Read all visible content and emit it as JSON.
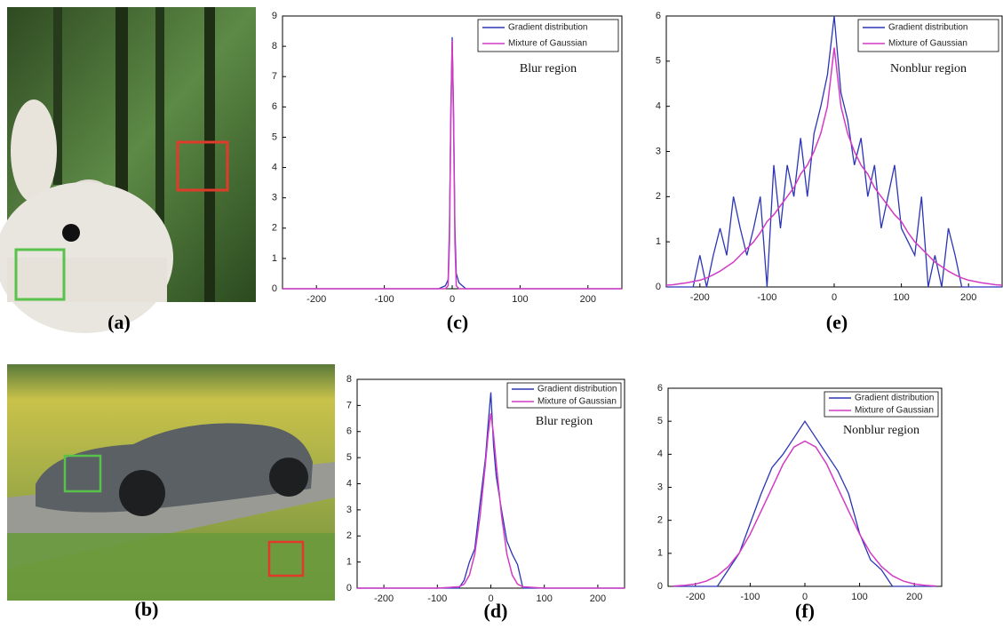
{
  "images": [
    {
      "caption": "(a)"
    },
    {
      "caption": "(b)"
    }
  ],
  "chart_data": [
    {
      "type": "line",
      "caption": "(c)",
      "annotation": "Blur region",
      "x": [
        -250,
        -20,
        -10,
        -6,
        -4,
        -2,
        0,
        2,
        4,
        6,
        10,
        20,
        250
      ],
      "series": [
        {
          "name": "Gradient distribution",
          "color": "#2b35b5",
          "values": [
            0,
            0,
            0.1,
            0.3,
            2,
            6,
            8.3,
            6,
            2,
            0.5,
            0.2,
            0,
            0
          ]
        },
        {
          "name": "Mixture of Gaussian",
          "color": "#d23cc4",
          "values": [
            0,
            0,
            0,
            0.1,
            1.5,
            5.5,
            8.2,
            5.5,
            1.5,
            0.1,
            0,
            0,
            0
          ]
        }
      ],
      "xlim": [
        -250,
        250
      ],
      "xticks": [
        -200,
        -100,
        0,
        100,
        200
      ],
      "ylim": [
        0,
        9
      ],
      "yticks": [
        0,
        1,
        2,
        3,
        4,
        5,
        6,
        7,
        8,
        9
      ],
      "legend": "upper-right"
    },
    {
      "type": "line",
      "caption": "(e)",
      "annotation": "Nonblur region",
      "x": [
        -250,
        -240,
        -230,
        -220,
        -210,
        -200,
        -190,
        -180,
        -170,
        -160,
        -150,
        -140,
        -130,
        -120,
        -110,
        -100,
        -90,
        -80,
        -70,
        -60,
        -50,
        -40,
        -30,
        -20,
        -10,
        0,
        10,
        20,
        30,
        40,
        50,
        60,
        70,
        80,
        90,
        100,
        110,
        120,
        130,
        140,
        150,
        160,
        170,
        180,
        190,
        200,
        210,
        220,
        230,
        240,
        250
      ],
      "series": [
        {
          "name": "Gradient distribution",
          "color": "#2b35b5",
          "values": [
            0,
            0,
            0,
            0,
            0,
            0.7,
            0,
            0.7,
            1.3,
            0.7,
            2.0,
            1.3,
            0.7,
            1.3,
            2.0,
            0,
            2.7,
            1.3,
            2.7,
            2.0,
            3.3,
            2.0,
            3.4,
            4.0,
            4.7,
            6.0,
            4.3,
            3.7,
            2.7,
            3.3,
            2.0,
            2.7,
            1.3,
            2.0,
            2.7,
            1.3,
            1.0,
            0.7,
            2.0,
            0,
            0.7,
            0,
            1.3,
            0.7,
            0,
            0,
            0,
            0,
            0,
            0,
            0
          ]
        },
        {
          "name": "Mixture of Gaussian",
          "color": "#d23cc4",
          "values": [
            0.04,
            0.05,
            0.07,
            0.09,
            0.12,
            0.15,
            0.2,
            0.27,
            0.35,
            0.45,
            0.55,
            0.7,
            0.85,
            1.0,
            1.2,
            1.45,
            1.6,
            1.8,
            2.0,
            2.2,
            2.5,
            2.7,
            3.0,
            3.4,
            4.0,
            5.3,
            4.0,
            3.4,
            3.0,
            2.7,
            2.5,
            2.2,
            2.0,
            1.8,
            1.6,
            1.45,
            1.2,
            1.0,
            0.85,
            0.7,
            0.55,
            0.45,
            0.35,
            0.27,
            0.2,
            0.15,
            0.12,
            0.09,
            0.07,
            0.05,
            0.04
          ]
        }
      ],
      "xlim": [
        -250,
        250
      ],
      "xticks": [
        -200,
        -100,
        0,
        100,
        200
      ],
      "ylim": [
        0,
        6
      ],
      "yticks": [
        0,
        1,
        2,
        3,
        4,
        5,
        6
      ],
      "legend": "upper-right"
    },
    {
      "type": "line",
      "caption": "(d)",
      "annotation": "Blur region",
      "x": [
        -250,
        -100,
        -60,
        -50,
        -40,
        -30,
        -20,
        -10,
        -5,
        0,
        5,
        10,
        20,
        30,
        40,
        50,
        60,
        100,
        250
      ],
      "series": [
        {
          "name": "Gradient distribution",
          "color": "#2b35b5",
          "values": [
            0,
            0,
            0,
            0.3,
            1.0,
            1.5,
            3.3,
            5.0,
            6.3,
            7.5,
            5.5,
            4.3,
            3.0,
            1.8,
            1.3,
            0.9,
            0,
            0,
            0
          ]
        },
        {
          "name": "Mixture of Gaussian",
          "color": "#d23cc4",
          "values": [
            0,
            0,
            0.05,
            0.15,
            0.5,
            1.3,
            2.8,
            4.8,
            5.9,
            6.7,
            5.9,
            4.8,
            2.8,
            1.3,
            0.5,
            0.15,
            0.05,
            0,
            0
          ]
        }
      ],
      "xlim": [
        -250,
        250
      ],
      "xticks": [
        -200,
        -100,
        0,
        100,
        200
      ],
      "ylim": [
        0,
        8
      ],
      "yticks": [
        0,
        1,
        2,
        3,
        4,
        5,
        6,
        7,
        8
      ],
      "legend": "upper-right"
    },
    {
      "type": "line",
      "caption": "(f)",
      "annotation": "Nonblur region",
      "x": [
        -240,
        -220,
        -200,
        -180,
        -160,
        -140,
        -120,
        -100,
        -80,
        -60,
        -40,
        -20,
        0,
        20,
        40,
        60,
        80,
        100,
        120,
        140,
        160,
        180,
        200,
        220,
        240
      ],
      "series": [
        {
          "name": "Gradient distribution",
          "color": "#2b35b5",
          "values": [
            0,
            0,
            0,
            0,
            0,
            0.5,
            1.0,
            1.9,
            2.8,
            3.6,
            4.0,
            4.5,
            5.0,
            4.5,
            4.0,
            3.5,
            2.8,
            1.6,
            0.8,
            0.5,
            0,
            0,
            0,
            0,
            0
          ]
        },
        {
          "name": "Mixture of Gaussian",
          "color": "#d23cc4",
          "values": [
            0.01,
            0.03,
            0.07,
            0.16,
            0.32,
            0.6,
            1.01,
            1.58,
            2.28,
            2.98,
            3.7,
            4.22,
            4.4,
            4.22,
            3.7,
            2.98,
            2.28,
            1.58,
            1.01,
            0.6,
            0.32,
            0.16,
            0.07,
            0.03,
            0.01
          ]
        }
      ],
      "xlim": [
        -250,
        250
      ],
      "xticks": [
        -200,
        -100,
        0,
        100,
        200
      ],
      "ylim": [
        0,
        6
      ],
      "yticks": [
        0,
        1,
        2,
        3,
        4,
        5,
        6
      ],
      "legend": "upper-right"
    }
  ]
}
